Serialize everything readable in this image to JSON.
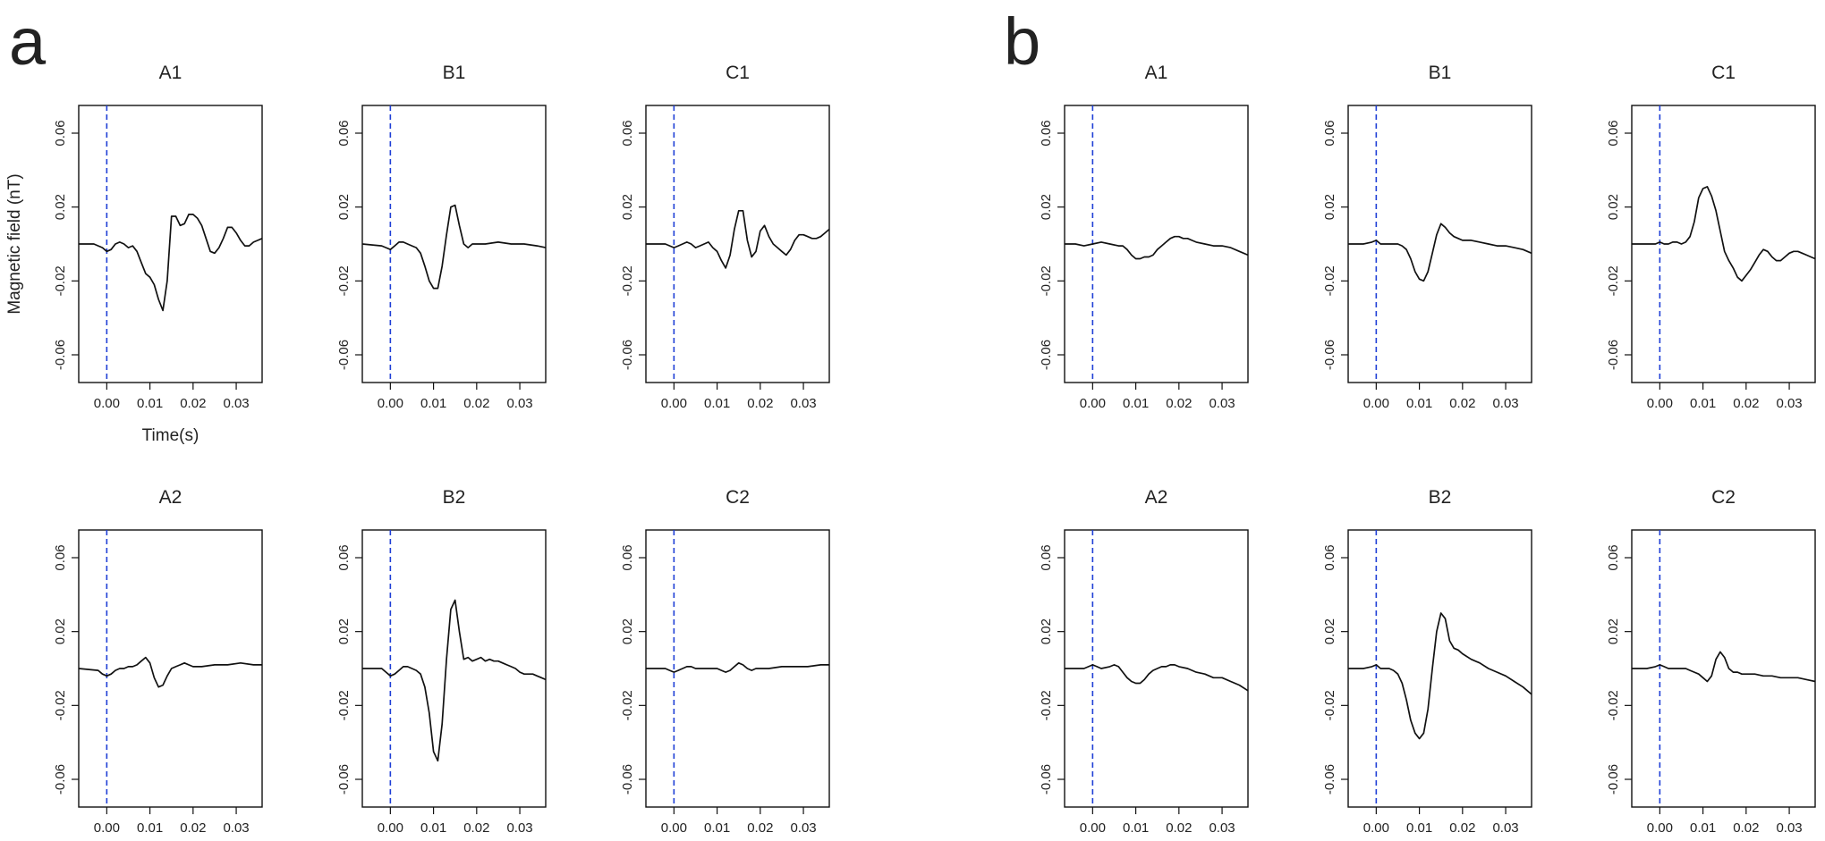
{
  "figure": {
    "panel_a_label": "a",
    "panel_b_label": "b"
  },
  "chart_data": [
    {
      "panel": "a",
      "type": "line",
      "title": "A1",
      "xlabel": "Time(s)",
      "ylabel": "Magnetic field (nT)",
      "xlim": [
        -0.0065,
        0.036
      ],
      "ylim": [
        -0.075,
        0.075
      ],
      "xticks": [
        "0.00",
        "0.01",
        "0.02",
        "0.03"
      ],
      "yticks": [
        "-0.06",
        "-0.02",
        "0.02",
        "0.06"
      ],
      "marker_x": 0.0,
      "marker_color": "#1f3fd6",
      "x": [
        -0.0065,
        -0.003,
        -0.001,
        0.0,
        0.001,
        0.002,
        0.003,
        0.004,
        0.005,
        0.006,
        0.007,
        0.008,
        0.009,
        0.01,
        0.011,
        0.012,
        0.013,
        0.014,
        0.015,
        0.016,
        0.017,
        0.018,
        0.019,
        0.02,
        0.021,
        0.022,
        0.023,
        0.024,
        0.025,
        0.026,
        0.027,
        0.028,
        0.029,
        0.03,
        0.031,
        0.032,
        0.033,
        0.034,
        0.035,
        0.036
      ],
      "y": [
        0.0,
        0.0,
        -0.002,
        -0.004,
        -0.003,
        0.0,
        0.001,
        0.0,
        -0.002,
        -0.001,
        -0.004,
        -0.01,
        -0.016,
        -0.018,
        -0.022,
        -0.03,
        -0.036,
        -0.02,
        0.015,
        0.015,
        0.01,
        0.011,
        0.016,
        0.016,
        0.014,
        0.01,
        0.003,
        -0.004,
        -0.005,
        -0.002,
        0.003,
        0.009,
        0.009,
        0.006,
        0.002,
        -0.001,
        -0.001,
        0.001,
        0.002,
        0.003
      ]
    },
    {
      "panel": "a",
      "type": "line",
      "title": "B1",
      "xlabel": "",
      "ylabel": "",
      "xlim": [
        -0.0065,
        0.036
      ],
      "ylim": [
        -0.075,
        0.075
      ],
      "xticks": [
        "0.00",
        "0.01",
        "0.02",
        "0.03"
      ],
      "yticks": [
        "-0.06",
        "-0.02",
        "0.02",
        "0.06"
      ],
      "marker_x": 0.0,
      "marker_color": "#1f3fd6",
      "x": [
        -0.0065,
        -0.002,
        -0.001,
        0.0,
        0.001,
        0.002,
        0.003,
        0.004,
        0.005,
        0.006,
        0.007,
        0.008,
        0.009,
        0.01,
        0.011,
        0.012,
        0.013,
        0.014,
        0.015,
        0.016,
        0.017,
        0.018,
        0.019,
        0.02,
        0.022,
        0.025,
        0.028,
        0.031,
        0.034,
        0.036
      ],
      "y": [
        0.0,
        -0.001,
        -0.002,
        -0.003,
        -0.001,
        0.001,
        0.001,
        0.0,
        -0.001,
        -0.002,
        -0.005,
        -0.012,
        -0.02,
        -0.024,
        -0.024,
        -0.012,
        0.005,
        0.02,
        0.021,
        0.01,
        0.0,
        -0.002,
        0.0,
        0.0,
        0.0,
        0.001,
        0.0,
        0.0,
        -0.001,
        -0.002
      ]
    },
    {
      "panel": "a",
      "type": "line",
      "title": "C1",
      "xlabel": "",
      "ylabel": "",
      "xlim": [
        -0.0065,
        0.036
      ],
      "ylim": [
        -0.075,
        0.075
      ],
      "xticks": [
        "0.00",
        "0.01",
        "0.02",
        "0.03"
      ],
      "yticks": [
        "-0.06",
        "-0.02",
        "0.02",
        "0.06"
      ],
      "marker_x": 0.0,
      "marker_color": "#1f3fd6",
      "x": [
        -0.0065,
        -0.002,
        0.0,
        0.001,
        0.002,
        0.003,
        0.004,
        0.005,
        0.006,
        0.007,
        0.008,
        0.009,
        0.01,
        0.011,
        0.012,
        0.013,
        0.014,
        0.015,
        0.016,
        0.017,
        0.018,
        0.019,
        0.02,
        0.021,
        0.022,
        0.023,
        0.024,
        0.025,
        0.026,
        0.027,
        0.028,
        0.029,
        0.03,
        0.031,
        0.032,
        0.033,
        0.034,
        0.035,
        0.036
      ],
      "y": [
        0.0,
        0.0,
        -0.002,
        -0.001,
        0.0,
        0.001,
        0.0,
        -0.002,
        -0.001,
        0.0,
        0.001,
        -0.002,
        -0.004,
        -0.009,
        -0.013,
        -0.006,
        0.008,
        0.018,
        0.018,
        0.002,
        -0.007,
        -0.004,
        0.007,
        0.01,
        0.004,
        0.0,
        -0.002,
        -0.004,
        -0.006,
        -0.003,
        0.002,
        0.005,
        0.005,
        0.004,
        0.003,
        0.003,
        0.004,
        0.006,
        0.008
      ]
    },
    {
      "panel": "a",
      "type": "line",
      "title": "A2",
      "xlabel": "",
      "ylabel": "",
      "xlim": [
        -0.0065,
        0.036
      ],
      "ylim": [
        -0.075,
        0.075
      ],
      "xticks": [
        "0.00",
        "0.01",
        "0.02",
        "0.03"
      ],
      "yticks": [
        "-0.06",
        "-0.02",
        "0.02",
        "0.06"
      ],
      "marker_x": 0.0,
      "marker_color": "#1f3fd6",
      "x": [
        -0.0065,
        -0.002,
        -0.001,
        0.0,
        0.001,
        0.002,
        0.003,
        0.004,
        0.005,
        0.006,
        0.007,
        0.008,
        0.009,
        0.01,
        0.011,
        0.012,
        0.013,
        0.014,
        0.015,
        0.016,
        0.017,
        0.018,
        0.019,
        0.02,
        0.022,
        0.025,
        0.028,
        0.031,
        0.034,
        0.036
      ],
      "y": [
        0.0,
        -0.001,
        -0.003,
        -0.004,
        -0.003,
        -0.001,
        0.0,
        0.0,
        0.001,
        0.001,
        0.002,
        0.004,
        0.006,
        0.003,
        -0.005,
        -0.01,
        -0.009,
        -0.004,
        0.0,
        0.001,
        0.002,
        0.003,
        0.002,
        0.001,
        0.001,
        0.002,
        0.002,
        0.003,
        0.002,
        0.002
      ]
    },
    {
      "panel": "a",
      "type": "line",
      "title": "B2",
      "xlabel": "",
      "ylabel": "",
      "xlim": [
        -0.0065,
        0.036
      ],
      "ylim": [
        -0.075,
        0.075
      ],
      "xticks": [
        "0.00",
        "0.01",
        "0.02",
        "0.03"
      ],
      "yticks": [
        "-0.06",
        "-0.02",
        "0.02",
        "0.06"
      ],
      "marker_x": 0.0,
      "marker_color": "#1f3fd6",
      "x": [
        -0.0065,
        -0.002,
        -0.001,
        0.0,
        0.001,
        0.002,
        0.003,
        0.004,
        0.005,
        0.006,
        0.007,
        0.008,
        0.009,
        0.01,
        0.011,
        0.012,
        0.013,
        0.014,
        0.015,
        0.016,
        0.017,
        0.018,
        0.019,
        0.02,
        0.021,
        0.022,
        0.023,
        0.024,
        0.025,
        0.026,
        0.027,
        0.028,
        0.029,
        0.03,
        0.031,
        0.032,
        0.033,
        0.034,
        0.035,
        0.036
      ],
      "y": [
        0.0,
        0.0,
        -0.002,
        -0.004,
        -0.003,
        -0.001,
        0.001,
        0.001,
        0.0,
        -0.001,
        -0.003,
        -0.01,
        -0.024,
        -0.045,
        -0.05,
        -0.03,
        0.005,
        0.032,
        0.037,
        0.02,
        0.005,
        0.006,
        0.004,
        0.005,
        0.006,
        0.004,
        0.005,
        0.004,
        0.004,
        0.003,
        0.002,
        0.001,
        0.0,
        -0.002,
        -0.003,
        -0.003,
        -0.003,
        -0.004,
        -0.005,
        -0.006
      ]
    },
    {
      "panel": "a",
      "type": "line",
      "title": "C2",
      "xlabel": "",
      "ylabel": "",
      "xlim": [
        -0.0065,
        0.036
      ],
      "ylim": [
        -0.075,
        0.075
      ],
      "xticks": [
        "0.00",
        "0.01",
        "0.02",
        "0.03"
      ],
      "yticks": [
        "-0.06",
        "-0.02",
        "0.02",
        "0.06"
      ],
      "marker_x": 0.0,
      "marker_color": "#1f3fd6",
      "x": [
        -0.0065,
        -0.002,
        -0.001,
        0.0,
        0.001,
        0.002,
        0.003,
        0.004,
        0.005,
        0.006,
        0.007,
        0.008,
        0.009,
        0.01,
        0.011,
        0.012,
        0.013,
        0.014,
        0.015,
        0.016,
        0.017,
        0.018,
        0.019,
        0.02,
        0.022,
        0.025,
        0.028,
        0.031,
        0.034,
        0.036
      ],
      "y": [
        0.0,
        0.0,
        -0.001,
        -0.002,
        -0.001,
        0.0,
        0.001,
        0.001,
        0.0,
        0.0,
        0.0,
        0.0,
        0.0,
        0.0,
        -0.001,
        -0.002,
        -0.001,
        0.001,
        0.003,
        0.002,
        0.0,
        -0.001,
        0.0,
        0.0,
        0.0,
        0.001,
        0.001,
        0.001,
        0.002,
        0.002
      ]
    },
    {
      "panel": "b",
      "type": "line",
      "title": "A1",
      "xlabel": "",
      "ylabel": "",
      "xlim": [
        -0.0065,
        0.036
      ],
      "ylim": [
        -0.075,
        0.075
      ],
      "xticks": [
        "0.00",
        "0.01",
        "0.02",
        "0.03"
      ],
      "yticks": [
        "-0.06",
        "-0.02",
        "0.02",
        "0.06"
      ],
      "marker_x": 0.0,
      "marker_color": "#1f3fd6",
      "x": [
        -0.0065,
        -0.004,
        -0.002,
        0.0,
        0.002,
        0.004,
        0.006,
        0.007,
        0.008,
        0.009,
        0.01,
        0.011,
        0.012,
        0.013,
        0.014,
        0.015,
        0.016,
        0.017,
        0.018,
        0.019,
        0.02,
        0.021,
        0.022,
        0.023,
        0.024,
        0.026,
        0.028,
        0.03,
        0.032,
        0.034,
        0.036
      ],
      "y": [
        0.0,
        0.0,
        -0.001,
        0.0,
        0.001,
        0.0,
        -0.001,
        -0.001,
        -0.003,
        -0.006,
        -0.008,
        -0.008,
        -0.007,
        -0.007,
        -0.006,
        -0.003,
        -0.001,
        0.001,
        0.003,
        0.004,
        0.004,
        0.003,
        0.003,
        0.002,
        0.001,
        0.0,
        -0.001,
        -0.001,
        -0.002,
        -0.004,
        -0.006
      ]
    },
    {
      "panel": "b",
      "type": "line",
      "title": "B1",
      "xlabel": "",
      "ylabel": "",
      "xlim": [
        -0.0065,
        0.036
      ],
      "ylim": [
        -0.075,
        0.075
      ],
      "xticks": [
        "0.00",
        "0.01",
        "0.02",
        "0.03"
      ],
      "yticks": [
        "-0.06",
        "-0.02",
        "0.02",
        "0.06"
      ],
      "marker_x": 0.0,
      "marker_color": "#1f3fd6",
      "x": [
        -0.0065,
        -0.003,
        -0.001,
        0.0,
        0.001,
        0.003,
        0.005,
        0.006,
        0.007,
        0.008,
        0.009,
        0.01,
        0.011,
        0.012,
        0.013,
        0.014,
        0.015,
        0.016,
        0.017,
        0.018,
        0.019,
        0.02,
        0.022,
        0.024,
        0.026,
        0.028,
        0.03,
        0.032,
        0.034,
        0.036
      ],
      "y": [
        0.0,
        0.0,
        0.001,
        0.002,
        0.0,
        0.0,
        0.0,
        -0.001,
        -0.003,
        -0.008,
        -0.015,
        -0.019,
        -0.02,
        -0.015,
        -0.005,
        0.005,
        0.011,
        0.009,
        0.006,
        0.004,
        0.003,
        0.002,
        0.002,
        0.001,
        0.0,
        -0.001,
        -0.001,
        -0.002,
        -0.003,
        -0.005
      ]
    },
    {
      "panel": "b",
      "type": "line",
      "title": "C1",
      "xlabel": "",
      "ylabel": "",
      "xlim": [
        -0.0065,
        0.036
      ],
      "ylim": [
        -0.075,
        0.075
      ],
      "xticks": [
        "0.00",
        "0.01",
        "0.02",
        "0.03"
      ],
      "yticks": [
        "-0.06",
        "-0.02",
        "0.02",
        "0.06"
      ],
      "marker_x": 0.0,
      "marker_color": "#1f3fd6",
      "x": [
        -0.0065,
        -0.003,
        -0.001,
        0.0,
        0.001,
        0.002,
        0.003,
        0.004,
        0.005,
        0.006,
        0.007,
        0.008,
        0.009,
        0.01,
        0.011,
        0.012,
        0.013,
        0.014,
        0.015,
        0.016,
        0.017,
        0.018,
        0.019,
        0.02,
        0.021,
        0.022,
        0.023,
        0.024,
        0.025,
        0.026,
        0.027,
        0.028,
        0.029,
        0.03,
        0.031,
        0.032,
        0.033,
        0.034,
        0.035,
        0.036
      ],
      "y": [
        0.0,
        0.0,
        0.0,
        0.001,
        0.0,
        0.0,
        0.001,
        0.001,
        0.0,
        0.001,
        0.004,
        0.012,
        0.025,
        0.03,
        0.031,
        0.026,
        0.018,
        0.007,
        -0.004,
        -0.009,
        -0.013,
        -0.018,
        -0.02,
        -0.017,
        -0.014,
        -0.01,
        -0.006,
        -0.003,
        -0.004,
        -0.007,
        -0.009,
        -0.009,
        -0.007,
        -0.005,
        -0.004,
        -0.004,
        -0.005,
        -0.006,
        -0.007,
        -0.008
      ]
    },
    {
      "panel": "b",
      "type": "line",
      "title": "A2",
      "xlabel": "",
      "ylabel": "",
      "xlim": [
        -0.0065,
        0.036
      ],
      "ylim": [
        -0.075,
        0.075
      ],
      "xticks": [
        "0.00",
        "0.01",
        "0.02",
        "0.03"
      ],
      "yticks": [
        "-0.06",
        "-0.02",
        "0.02",
        "0.06"
      ],
      "marker_x": 0.0,
      "marker_color": "#1f3fd6",
      "x": [
        -0.0065,
        -0.004,
        -0.002,
        0.0,
        0.001,
        0.002,
        0.004,
        0.005,
        0.006,
        0.007,
        0.008,
        0.009,
        0.01,
        0.011,
        0.012,
        0.013,
        0.014,
        0.015,
        0.016,
        0.017,
        0.018,
        0.019,
        0.02,
        0.022,
        0.024,
        0.026,
        0.028,
        0.03,
        0.032,
        0.034,
        0.036
      ],
      "y": [
        0.0,
        0.0,
        0.0,
        0.002,
        0.001,
        0.0,
        0.001,
        0.002,
        0.001,
        -0.002,
        -0.005,
        -0.007,
        -0.008,
        -0.008,
        -0.006,
        -0.003,
        -0.001,
        0.0,
        0.001,
        0.001,
        0.002,
        0.002,
        0.001,
        0.0,
        -0.002,
        -0.003,
        -0.005,
        -0.005,
        -0.007,
        -0.009,
        -0.012
      ]
    },
    {
      "panel": "b",
      "type": "line",
      "title": "B2",
      "xlabel": "",
      "ylabel": "",
      "xlim": [
        -0.0065,
        0.036
      ],
      "ylim": [
        -0.075,
        0.075
      ],
      "xticks": [
        "0.00",
        "0.01",
        "0.02",
        "0.03"
      ],
      "yticks": [
        "-0.06",
        "-0.02",
        "0.02",
        "0.06"
      ],
      "marker_x": 0.0,
      "marker_color": "#1f3fd6",
      "x": [
        -0.0065,
        -0.003,
        -0.001,
        0.0,
        0.001,
        0.003,
        0.004,
        0.005,
        0.006,
        0.007,
        0.008,
        0.009,
        0.01,
        0.011,
        0.012,
        0.013,
        0.014,
        0.015,
        0.016,
        0.017,
        0.018,
        0.019,
        0.02,
        0.022,
        0.024,
        0.026,
        0.028,
        0.03,
        0.032,
        0.034,
        0.036
      ],
      "y": [
        0.0,
        0.0,
        0.001,
        0.002,
        0.0,
        0.0,
        -0.001,
        -0.003,
        -0.008,
        -0.017,
        -0.028,
        -0.035,
        -0.038,
        -0.035,
        -0.022,
        0.0,
        0.02,
        0.03,
        0.027,
        0.015,
        0.011,
        0.01,
        0.008,
        0.005,
        0.003,
        0.0,
        -0.002,
        -0.004,
        -0.007,
        -0.01,
        -0.014
      ]
    },
    {
      "panel": "b",
      "type": "line",
      "title": "C2",
      "xlabel": "",
      "ylabel": "",
      "xlim": [
        -0.0065,
        0.036
      ],
      "ylim": [
        -0.075,
        0.075
      ],
      "xticks": [
        "0.00",
        "0.01",
        "0.02",
        "0.03"
      ],
      "yticks": [
        "-0.06",
        "-0.02",
        "0.02",
        "0.06"
      ],
      "marker_x": 0.0,
      "marker_color": "#1f3fd6",
      "x": [
        -0.0065,
        -0.003,
        -0.001,
        0.0,
        0.001,
        0.002,
        0.004,
        0.006,
        0.007,
        0.008,
        0.009,
        0.01,
        0.011,
        0.012,
        0.013,
        0.014,
        0.015,
        0.016,
        0.017,
        0.018,
        0.019,
        0.02,
        0.022,
        0.024,
        0.026,
        0.028,
        0.03,
        0.032,
        0.034,
        0.036
      ],
      "y": [
        0.0,
        0.0,
        0.001,
        0.002,
        0.001,
        0.0,
        0.0,
        0.0,
        -0.001,
        -0.002,
        -0.003,
        -0.005,
        -0.007,
        -0.004,
        0.005,
        0.009,
        0.006,
        0.0,
        -0.002,
        -0.002,
        -0.003,
        -0.003,
        -0.003,
        -0.004,
        -0.004,
        -0.005,
        -0.005,
        -0.005,
        -0.006,
        -0.007
      ]
    }
  ]
}
